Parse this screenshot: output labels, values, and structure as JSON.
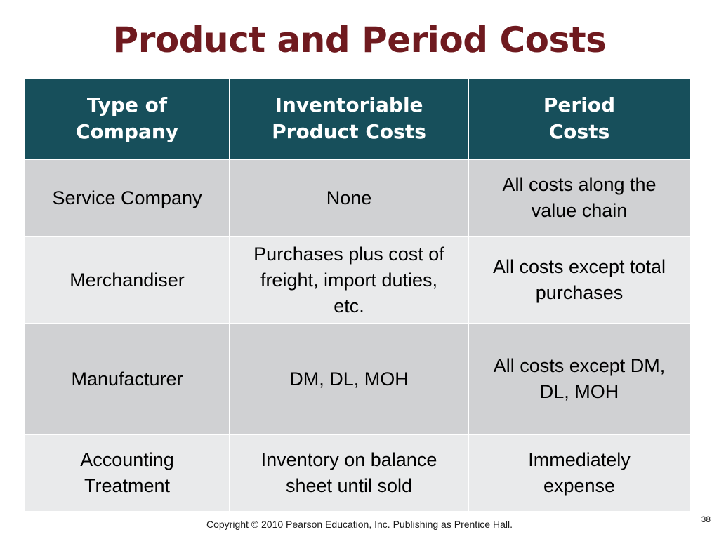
{
  "slide": {
    "title": "Product and Period Costs",
    "footer": "Copyright © 2010 Pearson Education, Inc. Publishing as Prentice Hall.",
    "page_number": "38"
  },
  "table": {
    "headers": [
      [
        "Type of",
        "Company"
      ],
      [
        "Inventoriable",
        "Product Costs"
      ],
      [
        "Period",
        "Costs"
      ]
    ],
    "rows": [
      [
        [
          "Service Company"
        ],
        [
          "None"
        ],
        [
          "All costs along the",
          "value chain"
        ]
      ],
      [
        [
          "Merchandiser"
        ],
        [
          "Purchases plus cost of",
          "freight, import duties,",
          "etc."
        ],
        [
          "All costs except total",
          "purchases"
        ]
      ],
      [
        [
          "Manufacturer"
        ],
        [
          "DM, DL, MOH"
        ],
        [
          "All costs except DM,",
          "DL, MOH"
        ]
      ],
      [
        [
          "Accounting",
          "Treatment"
        ],
        [
          "Inventory on balance",
          "sheet until sold"
        ],
        [
          "Immediately",
          "expense"
        ]
      ]
    ]
  },
  "colors": {
    "title": "#6f1a1f",
    "header_background": "#174f5b",
    "row_dark": "#d0d1d3",
    "row_light": "#e9eaeb"
  }
}
